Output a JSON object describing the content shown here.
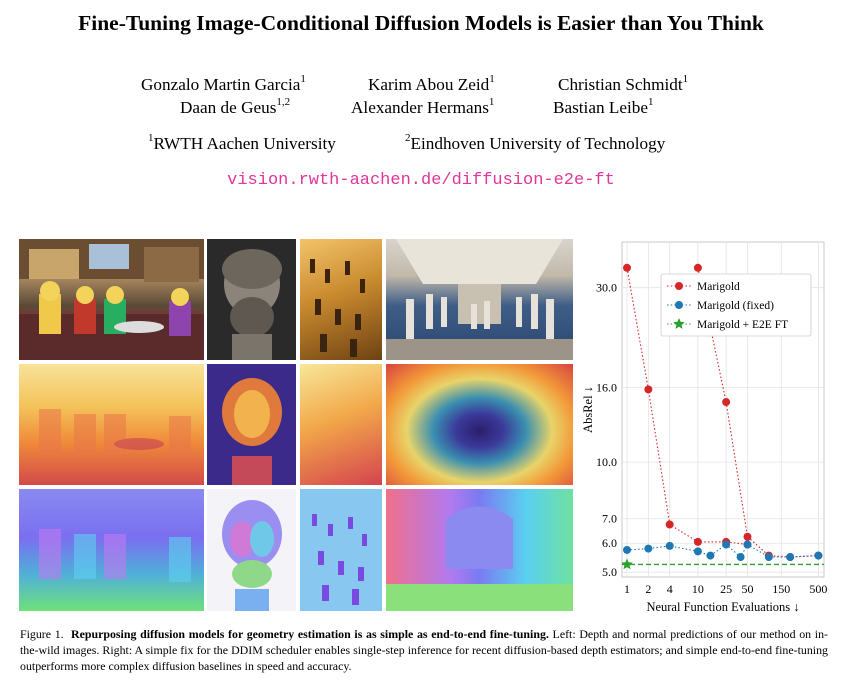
{
  "paper": {
    "title": "Fine-Tuning Image-Conditional Diffusion Models is Easier than You Think",
    "authors": [
      {
        "name": "Gonzalo Martin Garcia",
        "aff": "1"
      },
      {
        "name": "Karim Abou Zeid",
        "aff": "1"
      },
      {
        "name": "Christian Schmidt",
        "aff": "1"
      },
      {
        "name": "Daan de Geus",
        "aff": "1,2"
      },
      {
        "name": "Alexander Hermans",
        "aff": "1"
      },
      {
        "name": "Bastian Leibe",
        "aff": "1"
      }
    ],
    "affiliations": [
      {
        "mark": "1",
        "name": "RWTH Aachen University"
      },
      {
        "mark": "2",
        "name": "Eindhoven University of Technology"
      }
    ],
    "url": "vision.rwth-aachen.de/diffusion-e2e-ft"
  },
  "figure": {
    "caption_label": "Figure 1.",
    "caption_bold": "Repurposing diffusion models for geometry estimation is as simple as end-to-end fine-tuning.",
    "caption_rest": " Left: Depth and normal predictions of our method on in-the-wild images. Right: A simple fix for the DDIM scheduler enables single-step inference for recent diffusion-based depth estimators; and simple end-to-end fine-tuning outperforms more complex diffusion baselines in speed and accuracy.",
    "grid_rows": [
      "input images",
      "depth predictions",
      "normal predictions"
    ],
    "grid_cols": [
      "lego scene",
      "bust",
      "chess board",
      "museum hall"
    ]
  },
  "chart_data": {
    "type": "line",
    "xlabel": "Neural Function Evaluations ↓",
    "ylabel": "AbsRel ↓",
    "x_scale": "log",
    "y_scale": "log",
    "x_ticks": [
      1,
      2,
      4,
      10,
      25,
      50,
      150,
      500
    ],
    "y_ticks": [
      "5.0",
      "6.0",
      "7.0",
      "10.0",
      "16.0",
      "30.0"
    ],
    "xlim": [
      0.85,
      600
    ],
    "ylim": [
      4.85,
      40
    ],
    "grid": true,
    "legend_position": "upper-right",
    "colors": {
      "marigold": "#d62728",
      "fixed": "#1f77b4",
      "e2e": "#2ca02c"
    },
    "series": [
      {
        "name": "Marigold",
        "points": [
          [
            1,
            34.0
          ],
          [
            2,
            15.8
          ],
          [
            4,
            6.75
          ],
          [
            10,
            6.05
          ],
          [
            25,
            6.05
          ],
          [
            50,
            5.95
          ]
        ]
      },
      {
        "name": "Marigold",
        "points": [
          [
            10,
            34.0
          ],
          [
            25,
            14.6
          ],
          [
            50,
            6.25
          ],
          [
            100,
            5.55
          ],
          [
            200,
            5.5
          ],
          [
            500,
            5.55
          ]
        ]
      },
      {
        "name": "Marigold (fixed)",
        "points": [
          [
            1,
            5.75
          ],
          [
            2,
            5.8
          ],
          [
            4,
            5.9
          ],
          [
            10,
            5.7
          ],
          [
            15,
            5.55
          ],
          [
            25,
            5.95
          ],
          [
            40,
            5.5
          ],
          [
            50,
            5.95
          ],
          [
            100,
            5.5
          ],
          [
            200,
            5.5
          ],
          [
            500,
            5.55
          ]
        ]
      },
      {
        "name": "Marigold + E2E FT",
        "points": [
          [
            1,
            5.25
          ]
        ],
        "reference_line": 5.25
      }
    ]
  }
}
